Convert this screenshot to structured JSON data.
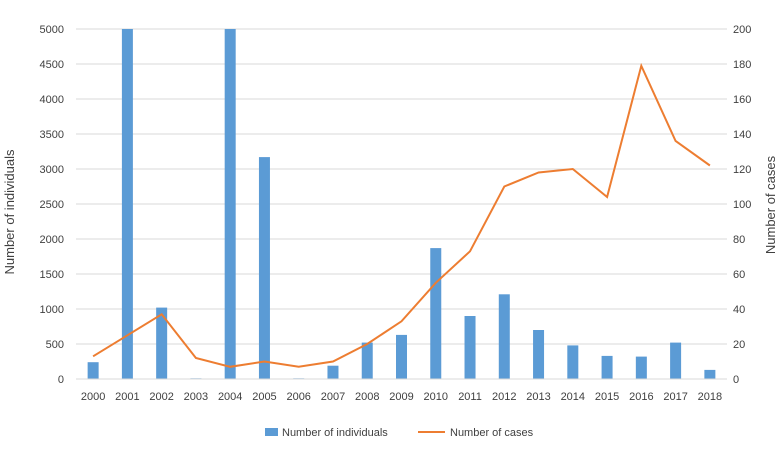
{
  "chart_data": {
    "type": "bar",
    "categories": [
      "2000",
      "2001",
      "2002",
      "2003",
      "2004",
      "2005",
      "2006",
      "2007",
      "2008",
      "2009",
      "2010",
      "2011",
      "2012",
      "2013",
      "2014",
      "2015",
      "2016",
      "2017",
      "2018"
    ],
    "series": [
      {
        "name": "Number of individuals",
        "type": "bar",
        "axis": "left",
        "color": "#5b9bd5",
        "values": [
          240,
          5000,
          1020,
          10,
          5000,
          3170,
          10,
          190,
          520,
          630,
          1870,
          900,
          1210,
          700,
          480,
          330,
          320,
          520,
          130
        ]
      },
      {
        "name": "Number of cases",
        "type": "line",
        "axis": "right",
        "color": "#ed7d31",
        "values": [
          13,
          25,
          37,
          12,
          7,
          10,
          7,
          10,
          20,
          33,
          55,
          73,
          110,
          118,
          120,
          104,
          179,
          136,
          122
        ]
      }
    ],
    "ylabel": "Number of individuals",
    "y2label": "Number of cases",
    "ylim": [
      0,
      5000
    ],
    "y2lim": [
      0,
      200
    ],
    "yticks": [
      "0",
      "500",
      "1000",
      "1500",
      "2000",
      "2500",
      "3000",
      "3500",
      "4000",
      "4500",
      "5000"
    ],
    "y2ticks": [
      "0",
      "20",
      "40",
      "60",
      "80",
      "100",
      "120",
      "140",
      "160",
      "180",
      "200"
    ],
    "grid": true,
    "legend_position": "bottom"
  }
}
